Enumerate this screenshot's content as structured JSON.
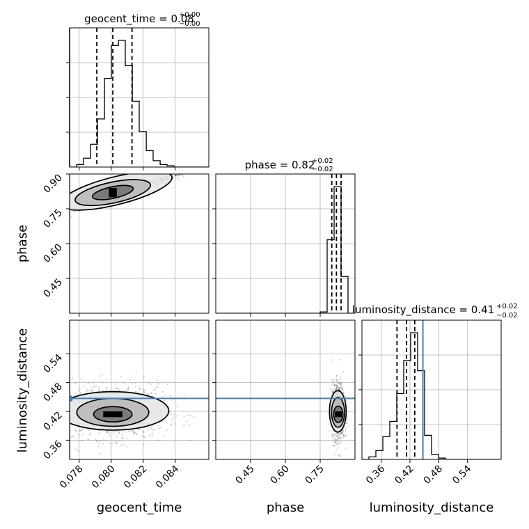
{
  "chart_data": {
    "type": "corner",
    "parameters": [
      "geocent_time",
      "phase",
      "luminosity_distance"
    ],
    "colors": {
      "truth": "#4682b4",
      "hist": "#000000",
      "grid": "#b0b0b0"
    },
    "grid": true,
    "truths": {
      "geocent_time": 0.0774,
      "phase": null,
      "luminosity_distance": 0.447
    },
    "titles": [
      {
        "text": "geocent_time = 0.08",
        "sup": "+0.00",
        "sub": "−0.00"
      },
      {
        "text": "phase = 0.82",
        "sup": "+0.02",
        "sub": "−0.02"
      },
      {
        "text": "luminosity_distance = 0.41",
        "sup": "+0.02",
        "sub": "−0.02"
      }
    ],
    "axes": {
      "geocent_time": {
        "label": "geocent_time",
        "range": [
          0.0774,
          0.0861
        ],
        "ticks": [
          0.078,
          0.08,
          0.082,
          0.084
        ],
        "ticklabels": [
          "0.078",
          "0.080",
          "0.082",
          "0.084"
        ]
      },
      "phase": {
        "label": "phase",
        "range": [
          0.3,
          0.9
        ],
        "ticks": [
          0.45,
          0.6,
          0.75,
          0.9
        ],
        "ticklabels": [
          "0.45",
          "0.60",
          "0.75",
          "0.90"
        ]
      },
      "luminosity_distance": {
        "label": "luminosity_distance",
        "range": [
          0.32,
          0.61
        ],
        "ticks": [
          0.36,
          0.42,
          0.48,
          0.54
        ],
        "ticklabels": [
          "0.36",
          "0.42",
          "0.48",
          "0.54"
        ]
      }
    },
    "histograms": {
      "geocent_time": {
        "edges": [
          0.0774,
          0.07784,
          0.07827,
          0.07871,
          0.07914,
          0.07958,
          0.08001,
          0.08045,
          0.08088,
          0.08132,
          0.08175,
          0.08219,
          0.08262,
          0.08306,
          0.08349,
          0.08393,
          0.08436,
          0.0848,
          0.08523,
          0.08567,
          0.0861
        ],
        "counts": [
          0,
          2,
          7,
          18,
          38,
          70,
          96,
          100,
          80,
          52,
          28,
          13,
          5,
          2,
          1,
          0,
          0,
          0,
          0,
          0
        ],
        "quantiles": [
          0.0791,
          0.0801,
          0.0813
        ]
      },
      "phase": {
        "edges": [
          0.3,
          0.33,
          0.36,
          0.39,
          0.42,
          0.45,
          0.48,
          0.51,
          0.54,
          0.57,
          0.6,
          0.63,
          0.66,
          0.69,
          0.72,
          0.75,
          0.78,
          0.81,
          0.84,
          0.87,
          0.9
        ],
        "counts": [
          0,
          0,
          0,
          0,
          0,
          0,
          0,
          0,
          0,
          0,
          0,
          0,
          0,
          0,
          0,
          1,
          58,
          100,
          29,
          0
        ],
        "quantiles": [
          0.8,
          0.82,
          0.84
        ]
      },
      "luminosity_distance": {
        "edges": [
          0.32,
          0.3345,
          0.349,
          0.3635,
          0.378,
          0.3925,
          0.407,
          0.4215,
          0.436,
          0.4505,
          0.465,
          0.4795,
          0.494,
          0.5085,
          0.523,
          0.5375,
          0.552,
          0.5665,
          0.581,
          0.5955,
          0.61
        ],
        "counts": [
          0,
          2,
          7,
          18,
          30,
          52,
          78,
          100,
          70,
          19,
          4,
          1,
          0,
          0,
          0,
          0,
          0,
          0,
          0,
          0
        ],
        "quantiles": [
          0.393,
          0.413,
          0.43
        ]
      }
    },
    "pairs": [
      {
        "x": "geocent_time",
        "y": "phase",
        "contours": [
          {
            "center": [
              0.0801,
              0.82
            ],
            "radius": [
              0.0013,
              0.025
            ],
            "angle_deg": -12,
            "fill": "#6e6e6e"
          },
          {
            "center": [
              0.0801,
              0.82
            ],
            "radius": [
              0.0024,
              0.045
            ],
            "angle_deg": -12,
            "fill": "#b7b7b7"
          },
          {
            "center": [
              0.0803,
              0.828
            ],
            "radius": [
              0.0036,
              0.06
            ],
            "angle_deg": -14,
            "fill": "#e6e6e6"
          }
        ],
        "core": [
          0.0801,
          0.82,
          0.00025,
          0.02
        ],
        "samples": 480,
        "sample_center": [
          0.0815,
          0.835
        ],
        "sample_spread": [
          0.002,
          0.015
        ]
      },
      {
        "x": "geocent_time",
        "y": "luminosity_distance",
        "contours": [
          {
            "center": [
              0.0801,
              0.414
            ],
            "radius": [
              0.0012,
              0.016
            ],
            "angle_deg": 0,
            "fill": "#6e6e6e"
          },
          {
            "center": [
              0.0801,
              0.418
            ],
            "radius": [
              0.00225,
              0.029
            ],
            "angle_deg": 0,
            "fill": "#b7b7b7"
          },
          {
            "center": [
              0.0801,
              0.421
            ],
            "radius": [
              0.0035,
              0.04
            ],
            "angle_deg": 0,
            "fill": "#e6e6e6"
          }
        ],
        "core": [
          0.0801,
          0.414,
          0.0006,
          0.006
        ],
        "samples": 1100,
        "sample_center": [
          0.0801,
          0.42
        ],
        "sample_spread": [
          0.0017,
          0.028
        ]
      },
      {
        "x": "phase",
        "y": "luminosity_distance",
        "contours": [
          {
            "center": [
              0.828,
              0.414
            ],
            "radius": [
              0.02,
              0.017
            ],
            "angle_deg": 0,
            "fill": "#6e6e6e"
          },
          {
            "center": [
              0.827,
              0.418
            ],
            "radius": [
              0.028,
              0.031
            ],
            "angle_deg": 0,
            "fill": "#b7b7b7"
          },
          {
            "center": [
              0.826,
              0.42
            ],
            "radius": [
              0.036,
              0.043
            ],
            "angle_deg": 0,
            "fill": "#e6e6e6"
          }
        ],
        "core": [
          0.828,
          0.414,
          0.015,
          0.006
        ],
        "samples": 950,
        "sample_center": [
          0.828,
          0.42
        ],
        "sample_spread": [
          0.014,
          0.03
        ]
      }
    ]
  }
}
